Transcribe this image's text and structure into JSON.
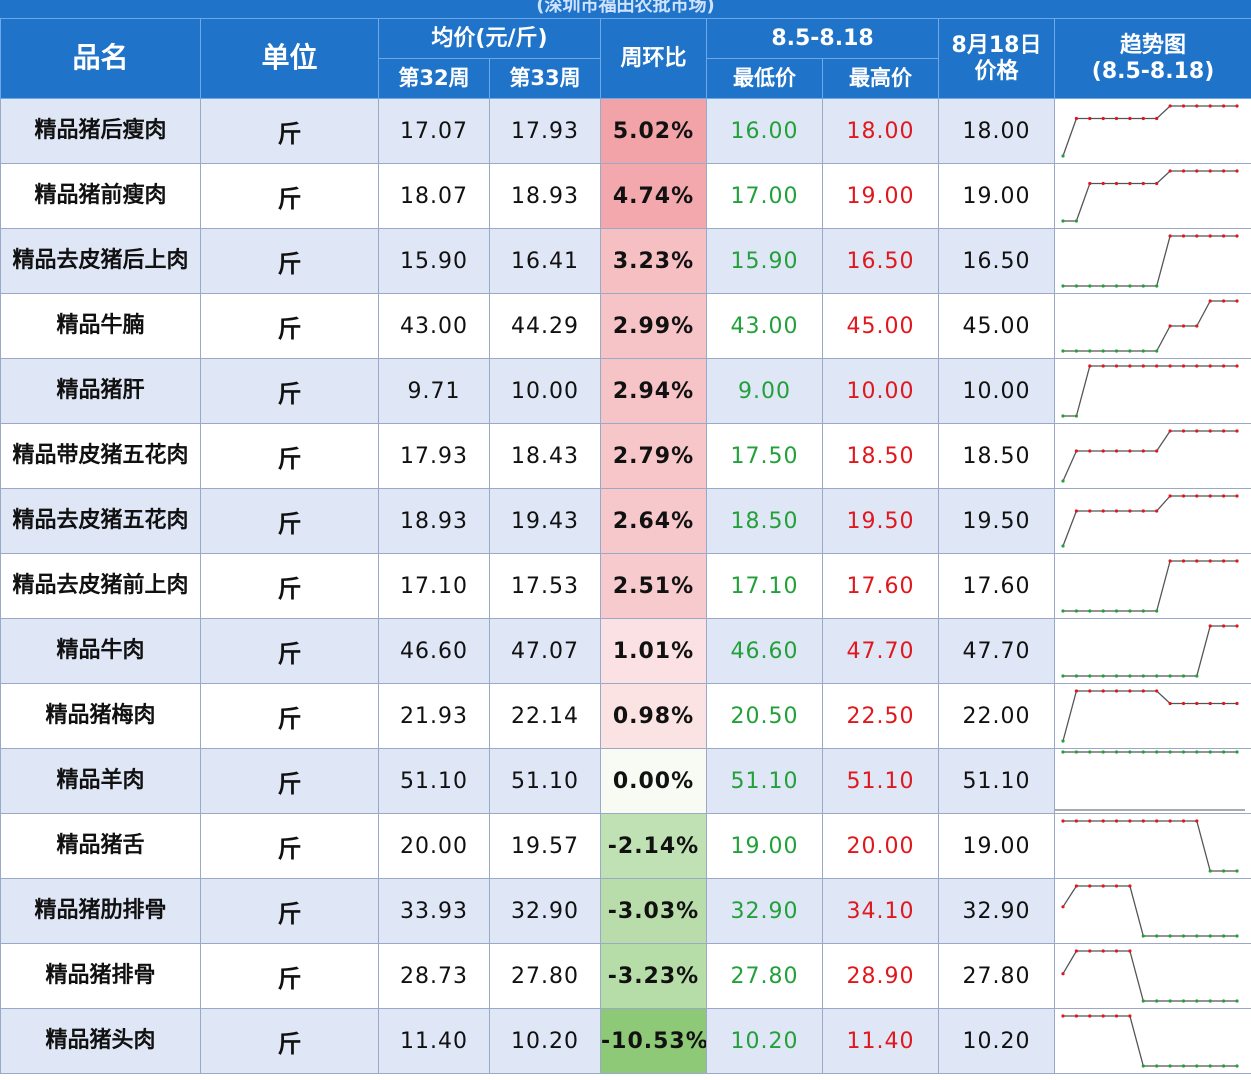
{
  "subtitle": "(深圳市福田农批市场)",
  "headers": {
    "name": "品名",
    "unit": "单位",
    "avg": "均价(元/斤)",
    "week32": "第32周",
    "week33": "第33周",
    "wow": "周环比",
    "range": "8.5-8.18",
    "low": "最低价",
    "high": "最高价",
    "price_line1": "8月18日",
    "price_line2": "价格",
    "trend_line1": "趋势图",
    "trend_line2": "(8.5-8.18)"
  },
  "colors": {
    "header_bg": "#1f73c8",
    "row_odd": "#dfe6f6",
    "low_text": "#22a13a",
    "high_text": "#e0181e",
    "up_bar": "#f2a5a9",
    "down_bar": "#a8d08d",
    "spark_line": "#555555",
    "spark_marker_high": "#e0181e",
    "spark_marker_low": "#22a13a"
  },
  "rows": [
    {
      "name": "精品猪后瘦肉",
      "unit": "斤",
      "w32": "17.07",
      "w33": "17.93",
      "wow": "5.02%",
      "wow_value": 5.02,
      "low": "16.00",
      "high": "18.00",
      "price": "18.00",
      "trend": [
        16,
        17.5,
        17.5,
        17.5,
        17.5,
        17.5,
        17.5,
        17.5,
        18,
        18,
        18,
        18,
        18,
        18
      ]
    },
    {
      "name": "精品猪前瘦肉",
      "unit": "斤",
      "w32": "18.07",
      "w33": "18.93",
      "wow": "4.74%",
      "wow_value": 4.74,
      "low": "17.00",
      "high": "19.00",
      "price": "19.00",
      "trend": [
        17,
        17,
        18.5,
        18.5,
        18.5,
        18.5,
        18.5,
        18.5,
        19,
        19,
        19,
        19,
        19,
        19
      ]
    },
    {
      "name": "精品去皮猪后上肉",
      "unit": "斤",
      "w32": "15.90",
      "w33": "16.41",
      "wow": "3.23%",
      "wow_value": 3.23,
      "low": "15.90",
      "high": "16.50",
      "price": "16.50",
      "trend": [
        15.9,
        15.9,
        15.9,
        15.9,
        15.9,
        15.9,
        15.9,
        15.9,
        16.5,
        16.5,
        16.5,
        16.5,
        16.5,
        16.5
      ]
    },
    {
      "name": "精品牛腩",
      "unit": "斤",
      "w32": "43.00",
      "w33": "44.29",
      "wow": "2.99%",
      "wow_value": 2.99,
      "low": "43.00",
      "high": "45.00",
      "price": "45.00",
      "trend": [
        43,
        43,
        43,
        43,
        43,
        43,
        43,
        43,
        44,
        44,
        44,
        45,
        45,
        45
      ]
    },
    {
      "name": "精品猪肝",
      "unit": "斤",
      "w32": "9.71",
      "w33": "10.00",
      "wow": "2.94%",
      "wow_value": 2.94,
      "low": "9.00",
      "high": "10.00",
      "price": "10.00",
      "trend": [
        9,
        9,
        10,
        10,
        10,
        10,
        10,
        10,
        10,
        10,
        10,
        10,
        10,
        10
      ]
    },
    {
      "name": "精品带皮猪五花肉",
      "unit": "斤",
      "w32": "17.93",
      "w33": "18.43",
      "wow": "2.79%",
      "wow_value": 2.79,
      "low": "17.50",
      "high": "18.50",
      "price": "18.50",
      "trend": [
        17.5,
        18.1,
        18.1,
        18.1,
        18.1,
        18.1,
        18.1,
        18.1,
        18.5,
        18.5,
        18.5,
        18.5,
        18.5,
        18.5
      ]
    },
    {
      "name": "精品去皮猪五花肉",
      "unit": "斤",
      "w32": "18.93",
      "w33": "19.43",
      "wow": "2.64%",
      "wow_value": 2.64,
      "low": "18.50",
      "high": "19.50",
      "price": "19.50",
      "trend": [
        18.5,
        19.2,
        19.2,
        19.2,
        19.2,
        19.2,
        19.2,
        19.2,
        19.5,
        19.5,
        19.5,
        19.5,
        19.5,
        19.5
      ]
    },
    {
      "name": "精品去皮猪前上肉",
      "unit": "斤",
      "w32": "17.10",
      "w33": "17.53",
      "wow": "2.51%",
      "wow_value": 2.51,
      "low": "17.10",
      "high": "17.60",
      "price": "17.60",
      "trend": [
        17.1,
        17.1,
        17.1,
        17.1,
        17.1,
        17.1,
        17.1,
        17.1,
        17.6,
        17.6,
        17.6,
        17.6,
        17.6,
        17.6
      ]
    },
    {
      "name": "精品牛肉",
      "unit": "斤",
      "w32": "46.60",
      "w33": "47.07",
      "wow": "1.01%",
      "wow_value": 1.01,
      "low": "46.60",
      "high": "47.70",
      "price": "47.70",
      "trend": [
        46.6,
        46.6,
        46.6,
        46.6,
        46.6,
        46.6,
        46.6,
        46.6,
        46.6,
        46.6,
        46.6,
        47.7,
        47.7,
        47.7
      ]
    },
    {
      "name": "精品猪梅肉",
      "unit": "斤",
      "w32": "21.93",
      "w33": "22.14",
      "wow": "0.98%",
      "wow_value": 0.98,
      "low": "20.50",
      "high": "22.50",
      "price": "22.00",
      "trend": [
        20.5,
        22.5,
        22.5,
        22.5,
        22.5,
        22.5,
        22.5,
        22.5,
        22,
        22,
        22,
        22,
        22,
        22
      ]
    },
    {
      "name": "精品羊肉",
      "unit": "斤",
      "w32": "51.10",
      "w33": "51.10",
      "wow": "0.00%",
      "wow_value": 0,
      "low": "51.10",
      "high": "51.10",
      "price": "51.10",
      "trend": [
        51.1,
        51.1,
        51.1,
        51.1,
        51.1,
        51.1,
        51.1,
        51.1,
        51.1,
        51.1,
        51.1,
        51.1,
        51.1,
        51.1
      ]
    },
    {
      "name": "精品猪舌",
      "unit": "斤",
      "w32": "20.00",
      "w33": "19.57",
      "wow": "-2.14%",
      "wow_value": -2.14,
      "low": "19.00",
      "high": "20.00",
      "price": "19.00",
      "trend": [
        20,
        20,
        20,
        20,
        20,
        20,
        20,
        20,
        20,
        20,
        20,
        19,
        19,
        19
      ]
    },
    {
      "name": "精品猪肋排骨",
      "unit": "斤",
      "w32": "33.93",
      "w33": "32.90",
      "wow": "-3.03%",
      "wow_value": -3.03,
      "low": "32.90",
      "high": "34.10",
      "price": "32.90",
      "trend": [
        33.6,
        34.1,
        34.1,
        34.1,
        34.1,
        34.1,
        32.9,
        32.9,
        32.9,
        32.9,
        32.9,
        32.9,
        32.9,
        32.9
      ]
    },
    {
      "name": "精品猪排骨",
      "unit": "斤",
      "w32": "28.73",
      "w33": "27.80",
      "wow": "-3.23%",
      "wow_value": -3.23,
      "low": "27.80",
      "high": "28.90",
      "price": "27.80",
      "trend": [
        28.4,
        28.9,
        28.9,
        28.9,
        28.9,
        28.9,
        27.8,
        27.8,
        27.8,
        27.8,
        27.8,
        27.8,
        27.8,
        27.8
      ]
    },
    {
      "name": "精品猪头肉",
      "unit": "斤",
      "w32": "11.40",
      "w33": "10.20",
      "wow": "-10.53%",
      "wow_value": -10.53,
      "low": "10.20",
      "high": "11.40",
      "price": "10.20",
      "trend": [
        11.4,
        11.4,
        11.4,
        11.4,
        11.4,
        11.4,
        10.2,
        10.2,
        10.2,
        10.2,
        10.2,
        10.2,
        10.2,
        10.2
      ]
    }
  ]
}
